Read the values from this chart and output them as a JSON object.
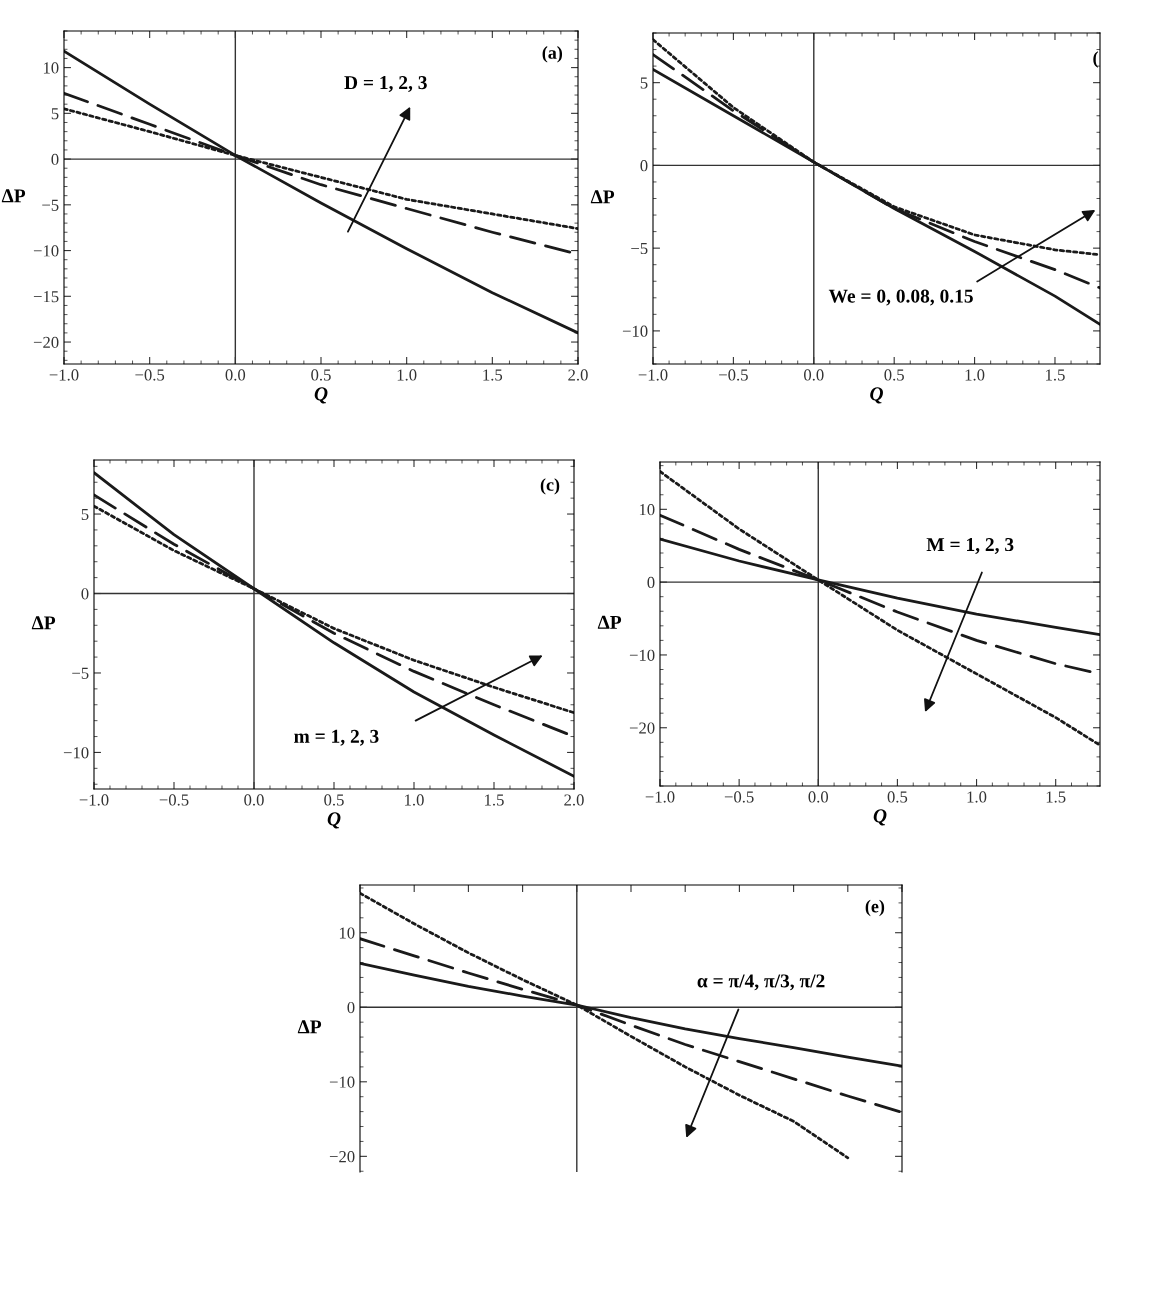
{
  "chart_data": [
    {
      "type": "line",
      "xlabel": "Q",
      "ylabel": "ΔP",
      "xlim": [
        -1.0,
        2.0
      ],
      "ylim": [
        -22.4,
        14
      ],
      "xticks": [
        {
          "value": -1.0,
          "label": "−1.0"
        },
        {
          "value": -0.5,
          "label": "−0.5"
        },
        {
          "value": 0.0,
          "label": "0.0"
        },
        {
          "value": 0.5,
          "label": "0.5"
        },
        {
          "value": 1.0,
          "label": "1.0"
        },
        {
          "value": 1.5,
          "label": "1.5"
        },
        {
          "value": 2.0,
          "label": "2.0"
        }
      ],
      "yticks": [
        {
          "value": -20,
          "label": "−20"
        },
        {
          "value": -15,
          "label": "−15"
        },
        {
          "value": -10,
          "label": "−10"
        },
        {
          "value": -5,
          "label": "−5"
        },
        0,
        5,
        10
      ],
      "grid": false,
      "ref_lines": [
        {
          "axis": "x",
          "value": 0
        },
        {
          "axis": "y",
          "value": 0
        }
      ],
      "annotations": [
        "(a)",
        "D = 1, 2, 3"
      ],
      "x": [
        -1.0,
        -0.5,
        0.0,
        0.5,
        1.0,
        1.5,
        2.0
      ],
      "series": [
        {
          "color": "#1a1a1a",
          "line_style": "solid",
          "values": [
            11.8,
            6.0,
            0.4,
            -4.8,
            -9.8,
            -14.6,
            -19.0
          ]
        },
        {
          "color": "#1a1a1a",
          "line_style": "dashed",
          "values": [
            7.2,
            3.8,
            0.4,
            -2.8,
            -5.4,
            -8.0,
            -10.4
          ]
        },
        {
          "color": "#1a1a1a",
          "line_style": "dotted",
          "values": [
            5.5,
            3.0,
            0.4,
            -2.0,
            -4.4,
            -6.0,
            -7.6
          ]
        }
      ]
    },
    {
      "type": "line",
      "xlabel": "Q",
      "ylabel": "ΔP",
      "xlim": [
        -1.0,
        1.78
      ],
      "ylim": [
        -12,
        8
      ],
      "xticks": [
        {
          "value": -1.0,
          "label": "−1.0"
        },
        {
          "value": -0.5,
          "label": "−0.5"
        },
        {
          "value": 0.0,
          "label": "0.0"
        },
        {
          "value": 0.5,
          "label": "0.5"
        },
        {
          "value": 1.0,
          "label": "1.0"
        },
        {
          "value": 1.5,
          "label": "1.5"
        }
      ],
      "yticks": [
        {
          "value": -10,
          "label": "−10"
        },
        {
          "value": -5,
          "label": "−5"
        },
        0,
        5
      ],
      "grid": false,
      "ref_lines": [
        {
          "axis": "x",
          "value": 0
        },
        {
          "axis": "y",
          "value": 0
        }
      ],
      "annotations": [
        "(",
        "We = 0, 0.08, 0.15"
      ],
      "x": [
        -1.0,
        -0.5,
        0.0,
        0.5,
        1.0,
        1.5,
        1.78
      ],
      "series": [
        {
          "color": "#1a1a1a",
          "line_style": "solid",
          "values": [
            5.8,
            3.0,
            0.2,
            -2.6,
            -5.2,
            -7.9,
            -9.6
          ]
        },
        {
          "color": "#1a1a1a",
          "line_style": "dashed",
          "values": [
            6.7,
            3.3,
            0.2,
            -2.6,
            -4.6,
            -6.3,
            -7.4
          ]
        },
        {
          "color": "#1a1a1a",
          "line_style": "dotted",
          "values": [
            7.6,
            3.5,
            0.2,
            -2.5,
            -4.2,
            -5.1,
            -5.4
          ]
        }
      ]
    },
    {
      "type": "line",
      "xlabel": "Q",
      "ylabel": "ΔP",
      "xlim": [
        -1.0,
        2.0
      ],
      "ylim": [
        -12.3,
        8.4
      ],
      "xticks": [
        {
          "value": -1.0,
          "label": "−1.0"
        },
        {
          "value": -0.5,
          "label": "−0.5"
        },
        {
          "value": 0.0,
          "label": "0.0"
        },
        {
          "value": 0.5,
          "label": "0.5"
        },
        {
          "value": 1.0,
          "label": "1.0"
        },
        {
          "value": 1.5,
          "label": "1.5"
        },
        {
          "value": 2.0,
          "label": "2.0"
        }
      ],
      "yticks": [
        {
          "value": -10,
          "label": "−10"
        },
        {
          "value": -5,
          "label": "−5"
        },
        0,
        5
      ],
      "grid": false,
      "ref_lines": [
        {
          "axis": "x",
          "value": 0
        },
        {
          "axis": "y",
          "value": 0
        }
      ],
      "annotations": [
        "(c)",
        "m = 1, 2, 3"
      ],
      "x": [
        -1.0,
        -0.5,
        0.0,
        0.5,
        1.0,
        1.5,
        2.0
      ],
      "series": [
        {
          "color": "#1a1a1a",
          "line_style": "solid",
          "values": [
            7.6,
            3.7,
            0.3,
            -3.1,
            -6.2,
            -8.9,
            -11.5
          ]
        },
        {
          "color": "#1a1a1a",
          "line_style": "dashed",
          "values": [
            6.2,
            3.1,
            0.3,
            -2.5,
            -4.9,
            -7.0,
            -9.0
          ]
        },
        {
          "color": "#1a1a1a",
          "line_style": "dotted",
          "values": [
            5.5,
            2.7,
            0.3,
            -2.2,
            -4.2,
            -5.9,
            -7.5
          ]
        }
      ]
    },
    {
      "type": "line",
      "xlabel": "Q",
      "ylabel": "ΔP",
      "xlim": [
        -1.0,
        1.78
      ],
      "ylim": [
        -28,
        16.5
      ],
      "xticks": [
        {
          "value": -1.0,
          "label": "−1.0"
        },
        {
          "value": -0.5,
          "label": "−0.5"
        },
        {
          "value": 0.0,
          "label": "0.0"
        },
        {
          "value": 0.5,
          "label": "0.5"
        },
        {
          "value": 1.0,
          "label": "1.0"
        },
        {
          "value": 1.5,
          "label": "1.5"
        }
      ],
      "yticks": [
        {
          "value": -20,
          "label": "−20"
        },
        {
          "value": -10,
          "label": "−10"
        },
        0,
        10
      ],
      "grid": false,
      "ref_lines": [
        {
          "axis": "x",
          "value": 0
        },
        {
          "axis": "y",
          "value": 0
        }
      ],
      "annotations": [
        "M = 1, 2, 3"
      ],
      "x": [
        -1.0,
        -0.5,
        0.0,
        0.5,
        1.0,
        1.5,
        1.78
      ],
      "series": [
        {
          "color": "#1a1a1a",
          "line_style": "solid",
          "values": [
            5.9,
            2.9,
            0.3,
            -2.2,
            -4.4,
            -6.2,
            -7.2
          ]
        },
        {
          "color": "#1a1a1a",
          "line_style": "dashed",
          "values": [
            9.2,
            4.5,
            0.3,
            -4.1,
            -8.0,
            -11.2,
            -12.6
          ]
        },
        {
          "color": "#1a1a1a",
          "line_style": "dotted",
          "values": [
            15.2,
            7.3,
            0.3,
            -6.6,
            -12.6,
            -18.6,
            -22.4
          ]
        }
      ]
    },
    {
      "type": "line",
      "ylabel": "ΔP",
      "ylim": [
        -22.1,
        16.4
      ],
      "tick_labels": "y",
      "categories": [
        null,
        null,
        null,
        null,
        null,
        null,
        null,
        null,
        null,
        null,
        null
      ],
      "yticks": [
        {
          "value": -20,
          "label": "−20"
        },
        {
          "value": -10,
          "label": "−10"
        },
        0,
        10
      ],
      "grid": false,
      "ref_lines": [
        {
          "axis": "y",
          "value": 0
        }
      ],
      "annotations": [
        "(e)",
        "α = π/4, π/3, π/2"
      ],
      "series": [
        {
          "color": "#1a1a1a",
          "line_style": "solid",
          "values": [
            5.9,
            4.3,
            2.8,
            1.5,
            0.3,
            -1.4,
            -2.9,
            -4.2,
            -5.4,
            -6.7,
            -7.9
          ]
        },
        {
          "color": "#1a1a1a",
          "line_style": "dashed",
          "values": [
            9.2,
            6.9,
            4.6,
            2.4,
            0.3,
            -2.4,
            -5.0,
            -7.3,
            -9.6,
            -11.9,
            -14.1
          ]
        },
        {
          "color": "#1a1a1a",
          "line_style": "dotted",
          "values": [
            15.3,
            11.2,
            7.3,
            3.7,
            0.3,
            -3.9,
            -8.0,
            -11.8,
            -15.3,
            -20.2,
            null
          ]
        }
      ]
    }
  ]
}
